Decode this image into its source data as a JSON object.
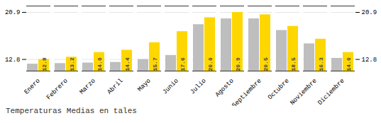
{
  "chart_data": {
    "type": "bar",
    "title": "Temperaturas Medias en tales",
    "categories": [
      "Enero",
      "Febrero",
      "Marzo",
      "Abril",
      "Mayo",
      "Junio",
      "Julio",
      "Agosto",
      "Septiembre",
      "Octubre",
      "Noviembre",
      "Diciembre"
    ],
    "series": [
      {
        "color": "#BEBEBE",
        "values": [
          12.0,
          12.1,
          12.2,
          12.3,
          12.8,
          13.5,
          18.8,
          19.8,
          19.8,
          17.8,
          15.5,
          13.0
        ]
      },
      {
        "color": "#FFD700",
        "values": [
          12.8,
          13.2,
          14.0,
          14.4,
          15.7,
          17.6,
          20.0,
          20.9,
          20.5,
          18.5,
          16.3,
          14.0
        ],
        "value_labels": [
          "12.8",
          "13.2",
          "14.0",
          "14.4",
          "15.7",
          "17.6",
          "20.0",
          "20.9",
          "20.5",
          "18.5",
          "16.3",
          "14.0"
        ],
        "data_labels": true
      }
    ],
    "ylim": [
      10.8,
      22.0
    ],
    "yticks": [
      12.8,
      20.9
    ],
    "grid": true
  }
}
